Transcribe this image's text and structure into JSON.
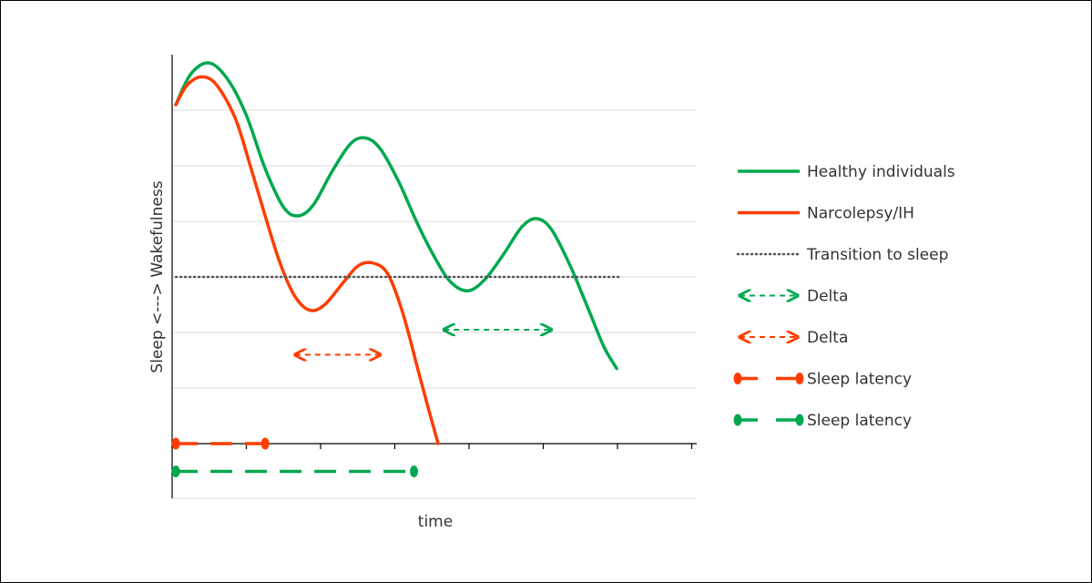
{
  "chart_data": {
    "type": "line",
    "title": "",
    "xlabel": "time",
    "ylabel": "Sleep <---> Wakefulness",
    "xlim": [
      0,
      14.1
    ],
    "ylim": [
      0,
      8
    ],
    "grid": true,
    "legend_position": "right",
    "series": [
      {
        "name": "Healthy individuals",
        "color": "#00a84f",
        "style": "solid",
        "points": [
          [
            0.1,
            6.1
          ],
          [
            0.5,
            6.65
          ],
          [
            1.0,
            6.85
          ],
          [
            1.5,
            6.55
          ],
          [
            2.0,
            5.9
          ],
          [
            2.5,
            4.95
          ],
          [
            3.0,
            4.25
          ],
          [
            3.4,
            4.1
          ],
          [
            3.8,
            4.3
          ],
          [
            4.3,
            4.9
          ],
          [
            4.8,
            5.4
          ],
          [
            5.2,
            5.5
          ],
          [
            5.6,
            5.3
          ],
          [
            6.1,
            4.7
          ],
          [
            6.6,
            3.95
          ],
          [
            7.1,
            3.3
          ],
          [
            7.5,
            2.9
          ],
          [
            7.95,
            2.75
          ],
          [
            8.4,
            2.95
          ],
          [
            8.9,
            3.4
          ],
          [
            9.4,
            3.9
          ],
          [
            9.8,
            4.05
          ],
          [
            10.2,
            3.85
          ],
          [
            10.7,
            3.2
          ],
          [
            11.2,
            2.4
          ],
          [
            11.6,
            1.75
          ],
          [
            11.95,
            1.35
          ]
        ]
      },
      {
        "name": "Narcolepsy/IH",
        "color": "#ff3d00",
        "style": "solid",
        "points": [
          [
            0.1,
            6.1
          ],
          [
            0.4,
            6.45
          ],
          [
            0.8,
            6.6
          ],
          [
            1.2,
            6.45
          ],
          [
            1.7,
            5.85
          ],
          [
            2.1,
            5.0
          ],
          [
            2.5,
            4.1
          ],
          [
            2.9,
            3.25
          ],
          [
            3.3,
            2.65
          ],
          [
            3.7,
            2.4
          ],
          [
            4.1,
            2.5
          ],
          [
            4.6,
            2.9
          ],
          [
            5.0,
            3.2
          ],
          [
            5.4,
            3.25
          ],
          [
            5.8,
            3.05
          ],
          [
            6.2,
            2.35
          ],
          [
            6.6,
            1.35
          ],
          [
            6.9,
            0.6
          ],
          [
            7.15,
            0.0
          ]
        ]
      },
      {
        "name": "Transition to sleep",
        "color": "#555555",
        "style": "dotted",
        "points": [
          [
            0.1,
            3.0
          ],
          [
            12.0,
            3.0
          ]
        ]
      }
    ],
    "annotations": [
      {
        "name": "Delta",
        "type": "double-arrow",
        "color": "#ff3d00",
        "from": [
          3.3,
          1.6
        ],
        "to": [
          5.6,
          1.6
        ]
      },
      {
        "name": "Delta",
        "type": "double-arrow",
        "color": "#00a84f",
        "from": [
          7.3,
          2.05
        ],
        "to": [
          10.2,
          2.05
        ]
      },
      {
        "name": "Sleep latency",
        "type": "range",
        "color": "#ff3d00",
        "from": [
          0.1,
          0.0
        ],
        "to": [
          2.5,
          0.0
        ]
      },
      {
        "name": "Sleep latency",
        "type": "range",
        "color": "#00a84f",
        "from": [
          0.1,
          -0.5
        ],
        "to": [
          6.5,
          -0.5
        ]
      }
    ],
    "legend": [
      {
        "label": "Healthy individuals",
        "color": "#00a84f",
        "style": "solid"
      },
      {
        "label": "Narcolepsy/IH",
        "color": "#ff3d00",
        "style": "solid"
      },
      {
        "label": "Transition to sleep",
        "color": "#555555",
        "style": "dotted"
      },
      {
        "label": "Delta",
        "color": "#00a84f",
        "style": "double-arrow"
      },
      {
        "label": "Delta",
        "color": "#ff3d00",
        "style": "double-arrow"
      },
      {
        "label": "Sleep latency",
        "color": "#ff3d00",
        "style": "range"
      },
      {
        "label": "Sleep latency",
        "color": "#00a84f",
        "style": "range"
      }
    ]
  }
}
